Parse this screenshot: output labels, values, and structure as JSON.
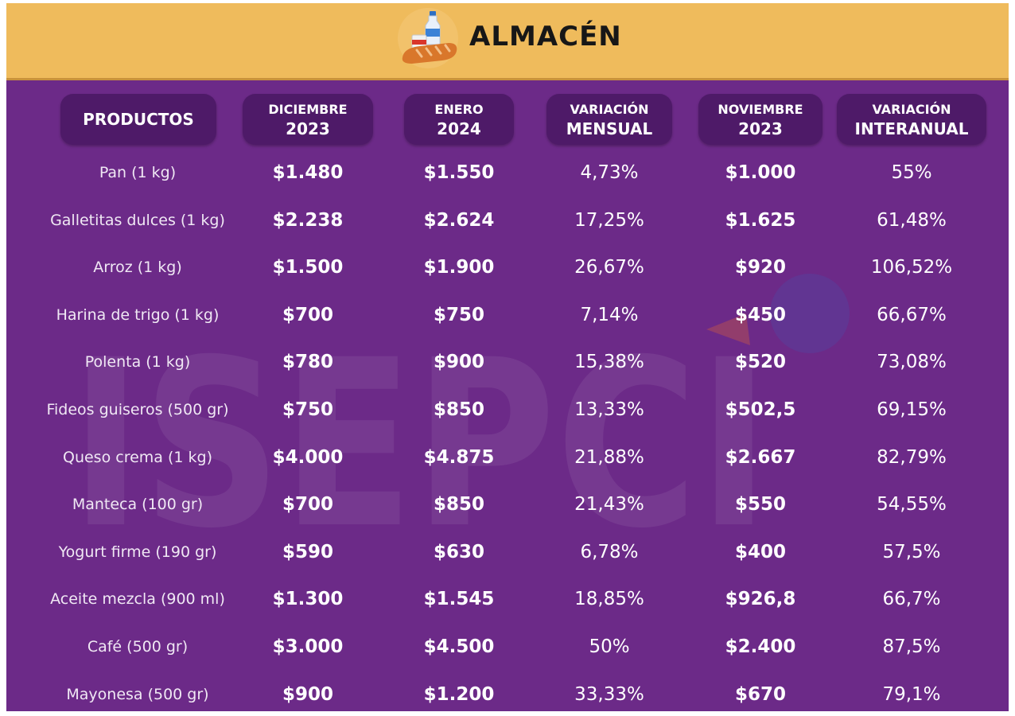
{
  "banner": {
    "title": "ALMACÉN",
    "icon": "bread-milk-icon"
  },
  "watermark": "ISEPCI",
  "colors": {
    "banner": "#efbb5c",
    "background": "#6c2a88",
    "header_pill": "#4e1a68",
    "text": "#ffffff"
  },
  "headers": [
    {
      "line1": "PRODUCTOS",
      "line2": ""
    },
    {
      "line1": "DICIEMBRE",
      "line2": "2023"
    },
    {
      "line1": "ENERO",
      "line2": "2024"
    },
    {
      "line1": "VARIACIÓN",
      "line2": "MENSUAL"
    },
    {
      "line1": "NOVIEMBRE",
      "line2": "2023"
    },
    {
      "line1": "VARIACIÓN",
      "line2": "INTERANUAL"
    }
  ],
  "rows": [
    {
      "producto": "Pan (1 kg)",
      "dic_2023": "$1.480",
      "ene_2024": "$1.550",
      "var_mensual": "4,73%",
      "nov_2023": "$1.000",
      "var_interanual": "55%"
    },
    {
      "producto": "Galletitas dulces (1 kg)",
      "dic_2023": "$2.238",
      "ene_2024": "$2.624",
      "var_mensual": "17,25%",
      "nov_2023": "$1.625",
      "var_interanual": "61,48%"
    },
    {
      "producto": "Arroz (1 kg)",
      "dic_2023": "$1.500",
      "ene_2024": "$1.900",
      "var_mensual": "26,67%",
      "nov_2023": "$920",
      "var_interanual": "106,52%"
    },
    {
      "producto": "Harina de trigo (1 kg)",
      "dic_2023": "$700",
      "ene_2024": "$750",
      "var_mensual": "7,14%",
      "nov_2023": "$450",
      "var_interanual": "66,67%"
    },
    {
      "producto": "Polenta (1 kg)",
      "dic_2023": "$780",
      "ene_2024": "$900",
      "var_mensual": "15,38%",
      "nov_2023": "$520",
      "var_interanual": "73,08%"
    },
    {
      "producto": "Fideos guiseros (500 gr)",
      "dic_2023": "$750",
      "ene_2024": "$850",
      "var_mensual": "13,33%",
      "nov_2023": "$502,5",
      "var_interanual": "69,15%"
    },
    {
      "producto": "Queso crema (1 kg)",
      "dic_2023": "$4.000",
      "ene_2024": "$4.875",
      "var_mensual": "21,88%",
      "nov_2023": "$2.667",
      "var_interanual": "82,79%"
    },
    {
      "producto": "Manteca (100 gr)",
      "dic_2023": "$700",
      "ene_2024": "$850",
      "var_mensual": "21,43%",
      "nov_2023": "$550",
      "var_interanual": "54,55%"
    },
    {
      "producto": "Yogurt firme (190 gr)",
      "dic_2023": "$590",
      "ene_2024": "$630",
      "var_mensual": "6,78%",
      "nov_2023": "$400",
      "var_interanual": "57,5%"
    },
    {
      "producto": "Aceite mezcla (900 ml)",
      "dic_2023": "$1.300",
      "ene_2024": "$1.545",
      "var_mensual": "18,85%",
      "nov_2023": "$926,8",
      "var_interanual": "66,7%"
    },
    {
      "producto": "Café (500 gr)",
      "dic_2023": "$3.000",
      "ene_2024": "$4.500",
      "var_mensual": "50%",
      "nov_2023": "$2.400",
      "var_interanual": "87,5%"
    },
    {
      "producto": "Mayonesa (500 gr)",
      "dic_2023": "$900",
      "ene_2024": "$1.200",
      "var_mensual": "33,33%",
      "nov_2023": "$670",
      "var_interanual": "79,1%"
    }
  ]
}
